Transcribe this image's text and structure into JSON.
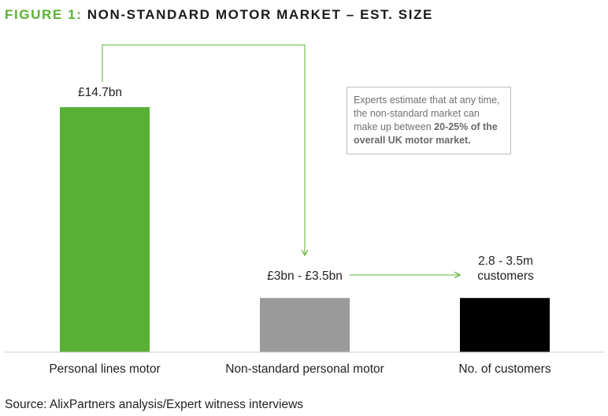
{
  "figure": {
    "title_prefix": "FIGURE 1:",
    "title": "NON-STANDARD MOTOR MARKET – EST. SIZE"
  },
  "annotation": {
    "text_before": "Experts estimate that at any time, the non-standard market can make up between ",
    "bold_range": "20-25%",
    "bold_tail": "of the overall UK motor market."
  },
  "source": "Source: AlixPartners analysis/Expert witness interviews",
  "chart_data": {
    "type": "bar",
    "categories": [
      "Personal lines motor",
      "Non-standard personal motor",
      "No. of customers"
    ],
    "bar_labels": [
      "£14.7bn",
      "£3bn - £3.5bn",
      "2.8 - 3.5m customers"
    ],
    "values": [
      14.7,
      3.25,
      null
    ],
    "colors": [
      "#5ab034",
      "#9a9a9a",
      "#000000"
    ],
    "accent_color": "#5ab034",
    "title": "NON-STANDARD MOTOR MARKET – EST. SIZE"
  }
}
